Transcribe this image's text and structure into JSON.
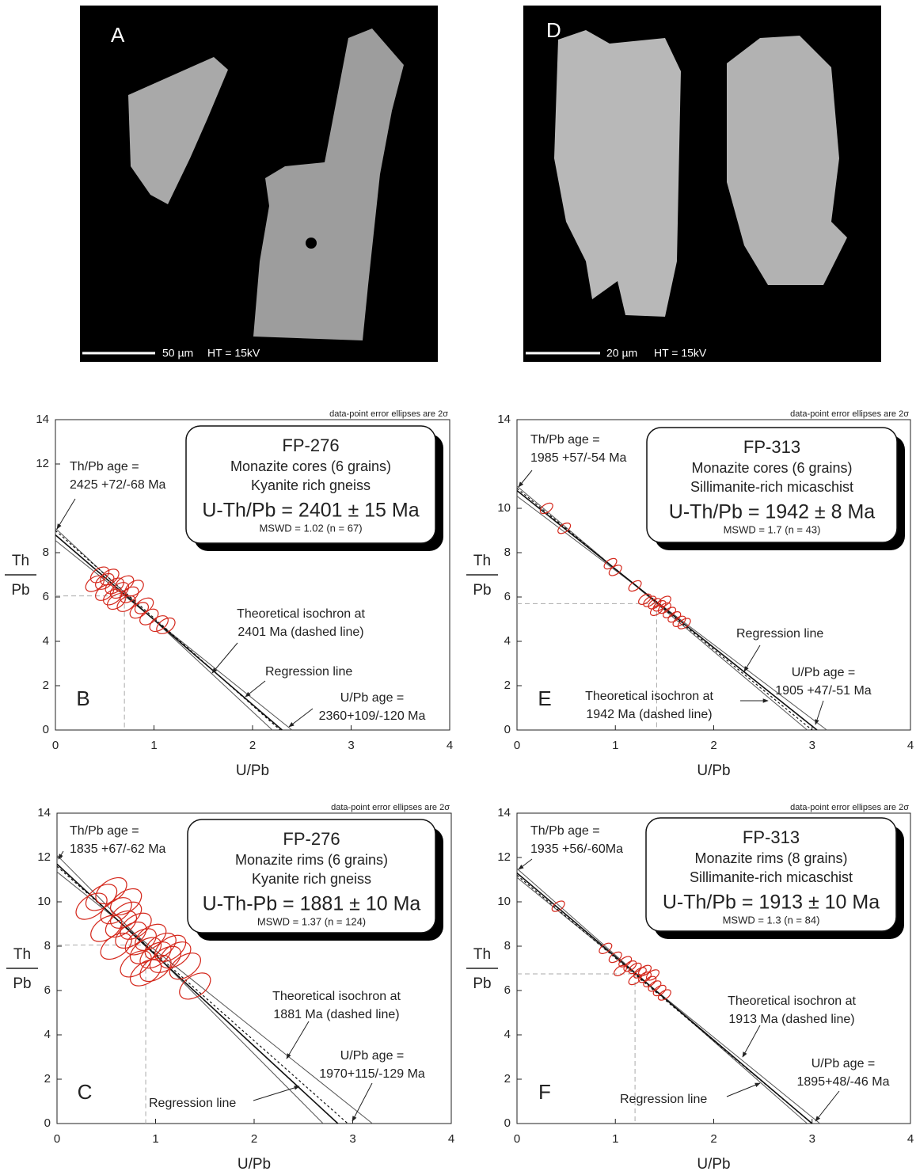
{
  "images": [
    {
      "panel": "A",
      "scale": "50 µm",
      "ht": "HT = 15kV"
    },
    {
      "panel": "D",
      "scale": "20 µm",
      "ht": "HT = 15kV"
    }
  ],
  "chart_data": [
    {
      "type": "scatter",
      "panel": "B",
      "note": "data-point error ellipses are 2σ",
      "xlabel": "U/Pb",
      "ylabel": [
        "Th",
        "Pb"
      ],
      "xlim": [
        0,
        4
      ],
      "ylim": [
        0,
        14
      ],
      "xticks": [
        0,
        1,
        2,
        3,
        4
      ],
      "yticks": [
        0,
        2,
        4,
        6,
        8,
        12,
        14
      ],
      "box": {
        "sample": "FP-276",
        "description": [
          "Monazite cores (6 grains)",
          "Kyanite rich gneiss"
        ],
        "age": "U-Th/Pb = 2401 ± 15 Ma",
        "mswd": "MSWD = 1.02 (n = 67)"
      },
      "annotations": {
        "thpb_age": [
          "Th/Pb age =",
          "2425 +72/-68 Ma"
        ],
        "isochron_label": [
          "Theoretical isochron at",
          "2401 Ma (dashed line)"
        ],
        "regression_label": "Regression line",
        "upb_age": [
          "U/Pb age =",
          "2360+109/-120 Ma"
        ]
      },
      "x": [
        0.45,
        0.5,
        0.55,
        0.6,
        0.65,
        0.7,
        0.5,
        0.58,
        0.75,
        0.8,
        0.62,
        0.72,
        0.85,
        0.95,
        1.05,
        1.12,
        0.9,
        0.4
      ],
      "y": [
        7.0,
        6.7,
        6.9,
        6.5,
        6.3,
        6.6,
        6.2,
        6.0,
        6.1,
        6.4,
        5.8,
        5.7,
        5.4,
        5.1,
        4.8,
        4.7,
        5.6,
        6.6
      ],
      "centroid": [
        0.7,
        6.05
      ],
      "regression": {
        "x": [
          0,
          2.3
        ],
        "y": [
          8.8,
          0
        ]
      },
      "envelope": [
        {
          "x": [
            0,
            2.2
          ],
          "y": [
            9.1,
            0
          ]
        },
        {
          "x": [
            0,
            2.4
          ],
          "y": [
            8.55,
            0
          ]
        }
      ],
      "isochron": {
        "x": [
          0,
          2.28
        ],
        "y": [
          9.0,
          0
        ]
      }
    },
    {
      "type": "scatter",
      "panel": "E",
      "note": "data-point error ellipses are 2σ",
      "xlabel": "U/Pb",
      "ylabel": [
        "Th",
        "Pb"
      ],
      "xlim": [
        0,
        4
      ],
      "ylim": [
        0,
        14
      ],
      "xticks": [
        0,
        1,
        2,
        3,
        4
      ],
      "yticks": [
        0,
        2,
        4,
        6,
        8,
        10,
        14
      ],
      "box": {
        "sample": "FP-313",
        "description": [
          "Monazite cores (6 grains)",
          "Sillimanite-rich micaschist"
        ],
        "age": "U-Th/Pb = 1942 ± 8 Ma",
        "mswd": "MSWD = 1.7 (n = 43)"
      },
      "annotations": {
        "thpb_age": [
          "Th/Pb age =",
          "1985 +57/-54 Ma"
        ],
        "isochron_label": [
          "Theoretical isochron at",
          "1942 Ma (dashed line)"
        ],
        "regression_label": "Regression line",
        "upb_age": [
          "U/Pb age =",
          "1905 +47/-51 Ma"
        ]
      },
      "x": [
        0.3,
        0.48,
        0.95,
        1.0,
        1.2,
        1.3,
        1.4,
        1.45,
        1.5,
        1.55,
        1.35,
        1.6,
        1.65,
        1.7,
        1.5,
        1.42
      ],
      "y": [
        10.0,
        9.1,
        7.5,
        7.2,
        6.5,
        5.9,
        5.7,
        5.6,
        5.5,
        5.3,
        5.8,
        5.1,
        4.9,
        4.8,
        5.8,
        5.4
      ],
      "centroid": [
        1.42,
        5.7
      ],
      "regression": {
        "x": [
          0,
          3.05
        ],
        "y": [
          10.8,
          0
        ]
      },
      "envelope": [
        {
          "x": [
            0,
            2.95
          ],
          "y": [
            11.0,
            0
          ]
        },
        {
          "x": [
            0,
            3.15
          ],
          "y": [
            10.55,
            0
          ]
        }
      ],
      "isochron": {
        "x": [
          0,
          3.0
        ],
        "y": [
          10.9,
          0
        ]
      }
    },
    {
      "type": "scatter",
      "panel": "C",
      "note": "data-point error ellipses are 2σ",
      "xlabel": "U/Pb",
      "ylabel": [
        "Th",
        "Pb"
      ],
      "xlim": [
        0,
        4
      ],
      "ylim": [
        0,
        14
      ],
      "xticks": [
        0,
        1,
        2,
        3,
        4
      ],
      "yticks": [
        0,
        2,
        4,
        6,
        8,
        10,
        12,
        14
      ],
      "box": {
        "sample": "FP-276",
        "description": [
          "Monazite rims (6 grains)",
          "Kyanite rich gneiss"
        ],
        "age": "U-Th-Pb = 1881 ± 10 Ma",
        "mswd": "MSWD = 1.37 (n = 124)"
      },
      "annotations": {
        "thpb_age": [
          "Th/Pb age =",
          "1835 +67/-62 Ma"
        ],
        "isochron_label": [
          "Theoretical isochron at",
          "1881 Ma (dashed line)"
        ],
        "regression_label": "Regression line",
        "upb_age": [
          "U/Pb age =",
          "1970+115/-129 Ma"
        ]
      },
      "x": [
        0.35,
        0.45,
        0.55,
        0.6,
        0.65,
        0.5,
        0.7,
        0.75,
        0.8,
        0.85,
        0.9,
        0.95,
        1.0,
        1.05,
        1.1,
        1.15,
        0.6,
        0.8,
        0.9,
        1.0,
        1.2,
        1.3,
        0.7,
        1.4
      ],
      "y": [
        9.8,
        10.2,
        10.5,
        9.6,
        9.0,
        8.8,
        9.4,
        8.5,
        8.9,
        8.2,
        7.8,
        8.4,
        7.6,
        8.0,
        7.4,
        7.9,
        8.0,
        7.2,
        6.8,
        7.0,
        7.6,
        7.1,
        10.0,
        6.2
      ],
      "centroid": [
        0.9,
        8.05
      ],
      "regression": {
        "x": [
          0,
          2.85
        ],
        "y": [
          11.7,
          0
        ]
      },
      "envelope": [
        {
          "x": [
            0,
            2.7
          ],
          "y": [
            12.1,
            0
          ]
        },
        {
          "x": [
            0,
            3.2
          ],
          "y": [
            11.35,
            0
          ]
        }
      ],
      "isochron": {
        "x": [
          0,
          2.95
        ],
        "y": [
          11.6,
          0
        ]
      }
    },
    {
      "type": "scatter",
      "panel": "F",
      "note": "data-point error ellipses are 2σ",
      "xlabel": "U/Pb",
      "ylabel": [
        "Th",
        "Pb"
      ],
      "xlim": [
        0,
        4
      ],
      "ylim": [
        0,
        14
      ],
      "xticks": [
        0,
        1,
        2,
        3,
        4
      ],
      "yticks": [
        0,
        2,
        4,
        6,
        8,
        10,
        12,
        14
      ],
      "box": {
        "sample": "FP-313",
        "description": [
          "Monazite rims (8 grains)",
          "Sillimanite-rich micaschist"
        ],
        "age": "U-Th/Pb = 1913 ± 10 Ma",
        "mswd": "MSWD = 1.3 (n = 84)"
      },
      "annotations": {
        "thpb_age": [
          "Th/Pb age =",
          "1935 +56/-60Ma"
        ],
        "isochron_label": [
          "Theoretical isochron at",
          "1913 Ma (dashed line)"
        ],
        "regression_label": "Regression line",
        "upb_age": [
          "U/Pb age =",
          "1895+48/-46 Ma"
        ]
      },
      "x": [
        0.42,
        0.9,
        1.0,
        1.1,
        1.2,
        1.25,
        1.3,
        1.35,
        1.4,
        1.45,
        1.15,
        1.05,
        1.3,
        1.5,
        1.2,
        1.38
      ],
      "y": [
        9.8,
        7.9,
        7.5,
        7.3,
        7.0,
        6.8,
        6.6,
        6.4,
        6.2,
        6.0,
        7.1,
        6.9,
        6.9,
        5.8,
        6.5,
        6.7
      ],
      "centroid": [
        1.2,
        6.75
      ],
      "regression": {
        "x": [
          0,
          3.0
        ],
        "y": [
          11.3,
          0
        ]
      },
      "envelope": [
        {
          "x": [
            0,
            2.95
          ],
          "y": [
            11.5,
            0
          ]
        },
        {
          "x": [
            0,
            3.08
          ],
          "y": [
            11.1,
            0
          ]
        }
      ],
      "isochron": {
        "x": [
          0,
          3.0
        ],
        "y": [
          11.2,
          0
        ]
      }
    }
  ]
}
